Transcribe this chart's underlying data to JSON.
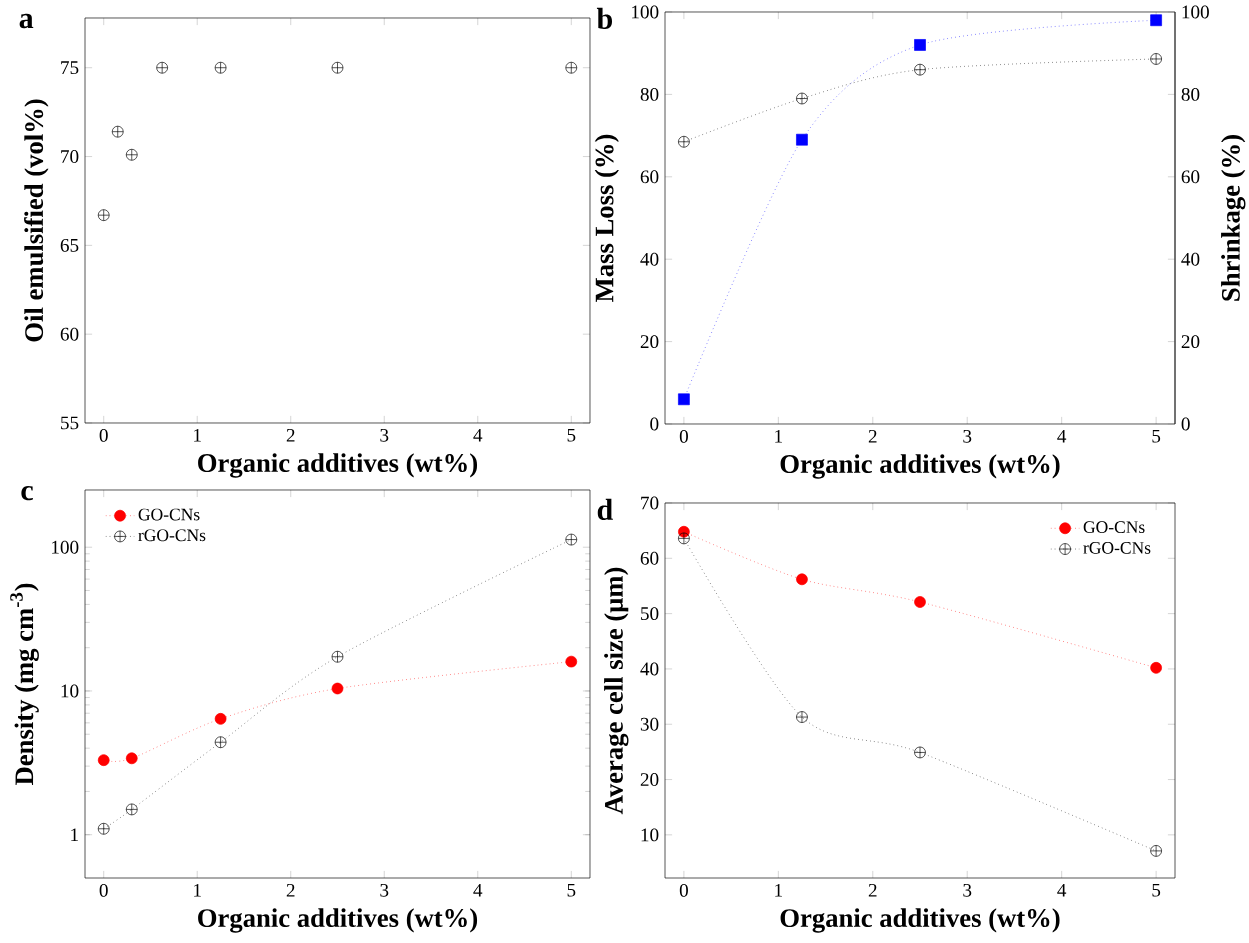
{
  "chart_data": [
    {
      "type": "scatter",
      "title": "a",
      "xlabel": "Organic additives (wt%)",
      "ylabel": "Oil emulsified (vol%)",
      "x": [
        0,
        0.15,
        0.3,
        0.625,
        1.25,
        2.5,
        5
      ],
      "xlim": [
        -0.2,
        5.2
      ],
      "ylim": [
        55,
        77.8
      ],
      "xticks": [
        0,
        1,
        2,
        3,
        4,
        5
      ],
      "yticks": [
        55,
        60,
        65,
        70,
        75
      ],
      "marker": "cross",
      "series": [
        {
          "color": "#000000",
          "values": [
            66.7,
            71.4,
            70.1,
            75,
            75,
            75,
            75
          ]
        }
      ]
    },
    {
      "type": "line",
      "title": "b",
      "xlabel": "Organic additives (wt%)",
      "ylabel": "Mass Loss (%)",
      "y2label": "Shrinkage (%)",
      "x": [
        0,
        1.25,
        2.5,
        5
      ],
      "xlim": [
        -0.2,
        5.2
      ],
      "ylim": [
        0,
        100
      ],
      "y2lim": [
        0,
        100
      ],
      "xticks": [
        0,
        1,
        2,
        3,
        4,
        5
      ],
      "yticks": [
        0,
        20,
        40,
        60,
        80,
        100
      ],
      "y2ticks": [
        0,
        20,
        40,
        60,
        80,
        100
      ],
      "line_style": "dotted",
      "series": [
        {
          "color": "#000000",
          "marker": "cross",
          "axis": "y",
          "values": [
            68.5,
            79,
            86,
            88.6
          ]
        },
        {
          "color": "#0000ff",
          "marker": "square",
          "axis": "y2",
          "values": [
            6,
            69,
            92,
            98
          ]
        }
      ]
    },
    {
      "type": "line",
      "title": "c",
      "xlabel": "Organic additives (wt%)",
      "ylabel": "Density (mg cm$^{-3}$)",
      "xlim": [
        -0.2,
        5.2
      ],
      "ylim": [
        0.5,
        250
      ],
      "log": "y",
      "xticks": [
        0,
        1,
        2,
        3,
        4,
        5
      ],
      "yticks": [
        1,
        10,
        100
      ],
      "legend": "top left",
      "line_style": "dotted",
      "series": [
        {
          "name": "GO-CNs",
          "color": "#ff0000",
          "marker": "circle",
          "x": [
            0,
            0.3,
            1.25,
            2.5,
            5
          ],
          "values": [
            3.3,
            3.4,
            6.4,
            10.4,
            16
          ]
        },
        {
          "name": "rGO-CNs",
          "color": "#000000",
          "marker": "cross",
          "x": [
            0,
            0.3,
            1.25,
            2.5,
            5
          ],
          "values": [
            1.1,
            1.5,
            4.4,
            17.3,
            113
          ]
        }
      ]
    },
    {
      "type": "line",
      "title": "d",
      "xlabel": "Organic additives (wt%)",
      "ylabel": "Average cell size (μm)",
      "x": [
        0,
        1.25,
        2.5,
        5
      ],
      "xlim": [
        -0.2,
        5.2
      ],
      "ylim": [
        2.2,
        70
      ],
      "xticks": [
        0,
        1,
        2,
        3,
        4,
        5
      ],
      "yticks": [
        10,
        20,
        30,
        40,
        50,
        60,
        70
      ],
      "legend": "top right",
      "line_style": "dotted",
      "series": [
        {
          "name": "GO-CNs",
          "color": "#ff0000",
          "marker": "circle",
          "values": [
            64.8,
            56.2,
            52.1,
            40.2
          ]
        },
        {
          "name": "rGO-CNs",
          "color": "#000000",
          "marker": "cross",
          "values": [
            63.6,
            31.3,
            24.9,
            7.1
          ]
        }
      ]
    }
  ]
}
